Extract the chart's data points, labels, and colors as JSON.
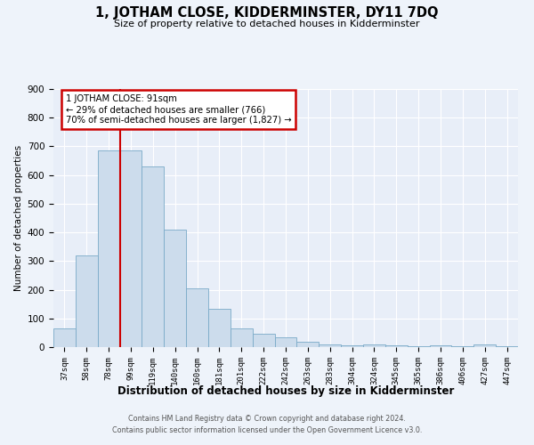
{
  "title": "1, JOTHAM CLOSE, KIDDERMINSTER, DY11 7DQ",
  "subtitle": "Size of property relative to detached houses in Kidderminster",
  "xlabel": "Distribution of detached houses by size in Kidderminster",
  "ylabel": "Number of detached properties",
  "categories": [
    "37sqm",
    "58sqm",
    "78sqm",
    "99sqm",
    "119sqm",
    "140sqm",
    "160sqm",
    "181sqm",
    "201sqm",
    "222sqm",
    "242sqm",
    "263sqm",
    "283sqm",
    "304sqm",
    "324sqm",
    "345sqm",
    "365sqm",
    "386sqm",
    "406sqm",
    "427sqm",
    "447sqm"
  ],
  "values": [
    65,
    320,
    685,
    685,
    630,
    410,
    205,
    135,
    65,
    48,
    35,
    20,
    10,
    5,
    8,
    5,
    3,
    5,
    3,
    8,
    3
  ],
  "bar_color": "#ccdcec",
  "bar_edge_color": "#7aaac8",
  "annotation_text_line1": "1 JOTHAM CLOSE: 91sqm",
  "annotation_text_line2": "← 29% of detached houses are smaller (766)",
  "annotation_text_line3": "70% of semi-detached houses are larger (1,827) →",
  "annotation_box_edgecolor": "#cc0000",
  "red_line_x": 2.5,
  "ylim": [
    0,
    900
  ],
  "yticks": [
    0,
    100,
    200,
    300,
    400,
    500,
    600,
    700,
    800,
    900
  ],
  "fig_bg_color": "#eef3fa",
  "axes_bg_color": "#e8eef8",
  "grid_color": "#ffffff",
  "footer_line1": "Contains HM Land Registry data © Crown copyright and database right 2024.",
  "footer_line2": "Contains public sector information licensed under the Open Government Licence v3.0."
}
